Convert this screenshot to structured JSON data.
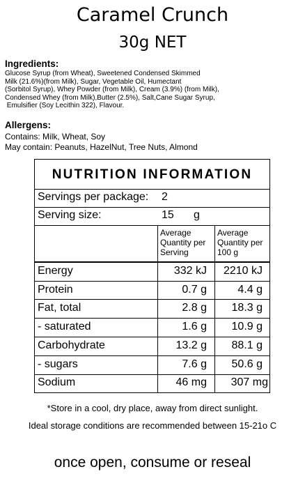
{
  "product": {
    "name": "Caramel Crunch",
    "net_weight": "30g NET"
  },
  "ingredients": {
    "heading": "Ingredients:",
    "lines": [
      "Glucose Syrup (from Wheat), Sweetened Condensed Skimmed",
      "Milk (21.6%)(from Milk), Sugar, Vegetable Oil, Humectant",
      "(Sorbitol Syrup), Whey Powder (from Milk), Cream (3.9%) (from Milk),",
      "Condensed Whey (from Milk),Butter (2.5%), Salt,Cane Sugar Syrup,",
      " Emulsifier (Soy Lecithin 322), Flavour."
    ]
  },
  "allergens": {
    "heading": "Allergens:",
    "contains": "Contains: Milk, Wheat, Soy",
    "may_contain": "May contain: Peanuts, HazelNut, Tree Nuts, Almond"
  },
  "nutrition": {
    "title": "NUTRITION INFORMATION",
    "servings_label": "Servings per package:",
    "servings_value": "2",
    "serving_size_label": "Serving size:",
    "serving_size_value": "15",
    "serving_size_unit": "g",
    "col1_header": [
      "Average",
      "Quantity per",
      "Serving"
    ],
    "col2_header": [
      "Average",
      "Quantity per",
      "100 g"
    ],
    "rows": [
      {
        "name": "Energy",
        "per_serving": "332 kJ",
        "per_100g": "2210 kJ"
      },
      {
        "name": "Protein",
        "per_serving": "0.7 g",
        "per_100g": "4.4 g"
      },
      {
        "name": "Fat, total",
        "per_serving": "2.8 g",
        "per_100g": "18.3 g"
      },
      {
        "name": "- saturated",
        "per_serving": "1.6 g",
        "per_100g": "10.9 g"
      },
      {
        "name": "Carbohydrate",
        "per_serving": "13.2 g",
        "per_100g": "88.1 g"
      },
      {
        "name": "- sugars",
        "per_serving": "7.6 g",
        "per_100g": "50.6 g"
      },
      {
        "name": "Sodium",
        "per_serving": "46 mg",
        "per_100g": "307 mg"
      }
    ]
  },
  "storage": {
    "line1": "*Store in a cool, dry place, away from direct sunlight.",
    "line2": "Ideal storage conditions are recommended between 15-21o C",
    "line3": "once open, consume or reseal"
  }
}
